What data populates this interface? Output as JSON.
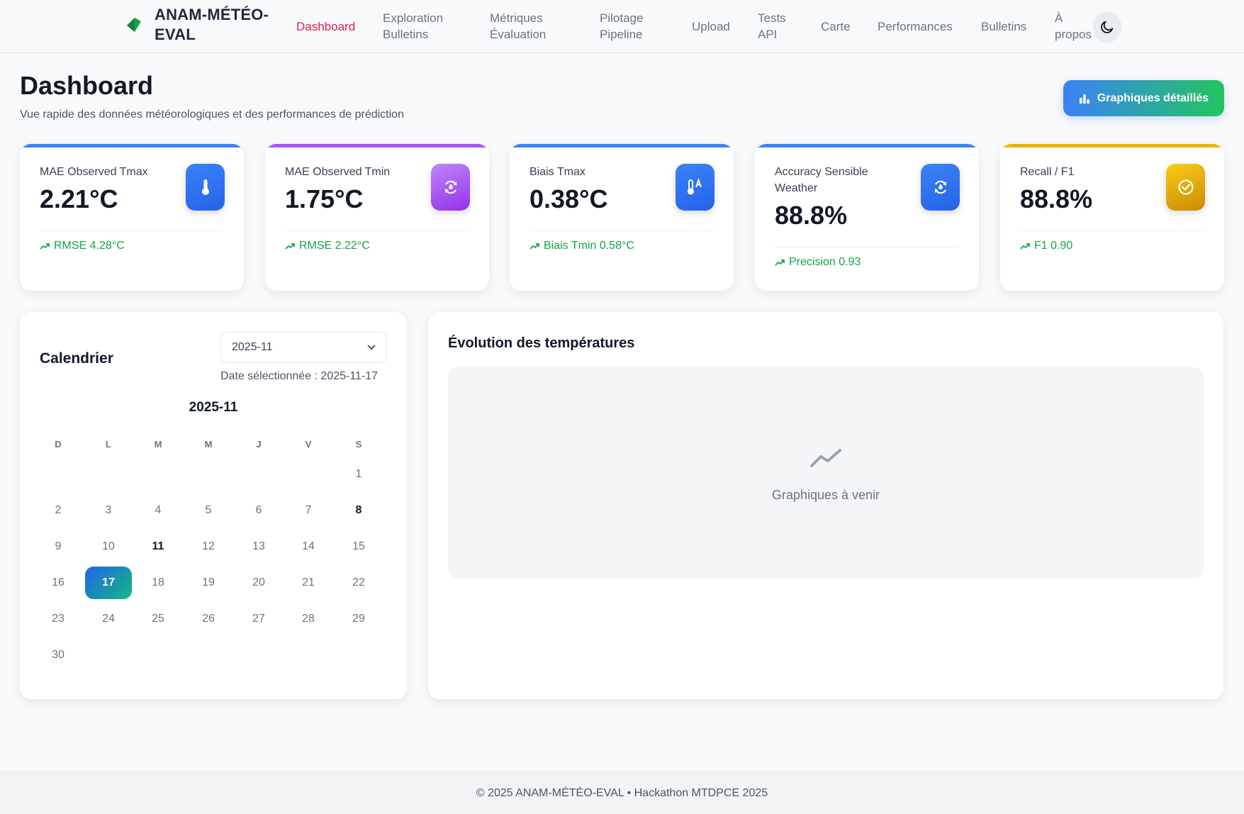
{
  "brand": {
    "name": "ANAM-MÉTÉO-EVAL"
  },
  "nav": {
    "items": [
      {
        "label": "Dashboard",
        "active": true
      },
      {
        "label": "Exploration Bulletins"
      },
      {
        "label": "Métriques Évaluation"
      },
      {
        "label": "Pilotage Pipeline"
      },
      {
        "label": "Upload"
      },
      {
        "label": "Tests API"
      },
      {
        "label": "Carte"
      },
      {
        "label": "Performances"
      },
      {
        "label": "Bulletins"
      },
      {
        "label": "À propos"
      }
    ],
    "theme_toggle_icon": "moon-icon"
  },
  "header": {
    "title": "Dashboard",
    "subtitle": "Vue rapide des données météorologiques et des performances de prédiction",
    "charts_button": "Graphiques détaillés"
  },
  "kpis": [
    {
      "label": "MAE Observed Tmax",
      "value": "2.21°C",
      "trend": "RMSE 4.28°C",
      "icon": "thermometer-icon",
      "accent": "#3b82f6"
    },
    {
      "label": "MAE Observed Tmin",
      "value": "1.75°C",
      "trend": "RMSE 2.22°C",
      "icon": "refresh-drop-icon",
      "accent": "#a855f7"
    },
    {
      "label": "Biais Tmax",
      "value": "0.38°C",
      "trend": "Biais Tmin 0.58°C",
      "icon": "thermometer-a-icon",
      "accent": "#3b82f6"
    },
    {
      "label": "Accuracy Sensible Weather",
      "value": "88.8%",
      "trend": "Precision 0.93",
      "icon": "refresh-drop-icon",
      "accent": "#3b82f6"
    },
    {
      "label": "Recall / F1",
      "value": "88.8%",
      "trend": "F1 0.90",
      "icon": "check-circle-icon",
      "accent": "#eab308"
    }
  ],
  "calendar": {
    "title": "Calendrier",
    "month_select_value": "2025-11",
    "selected_date_text": "Date sélectionnée : 2025-11-17",
    "month_label": "2025-11",
    "weekdays": [
      "D",
      "L",
      "M",
      "M",
      "J",
      "V",
      "S"
    ],
    "first_weekday_index": 6,
    "days_in_month": 30,
    "selected_day": 17,
    "bold_days": [
      8,
      11
    ]
  },
  "chart_panel": {
    "title": "Évolution des températures",
    "placeholder_text": "Graphiques à venir"
  },
  "footer": {
    "text": "© 2025 ANAM-MÉTÉO-EVAL • Hackathon MTDPCE 2025"
  },
  "colors": {
    "active_nav": "#e11d48",
    "trend_green": "#16a34a",
    "blue_icon": "#3b82f6",
    "purple_icon": "#a855f7",
    "yellow_icon": "#eab308"
  }
}
